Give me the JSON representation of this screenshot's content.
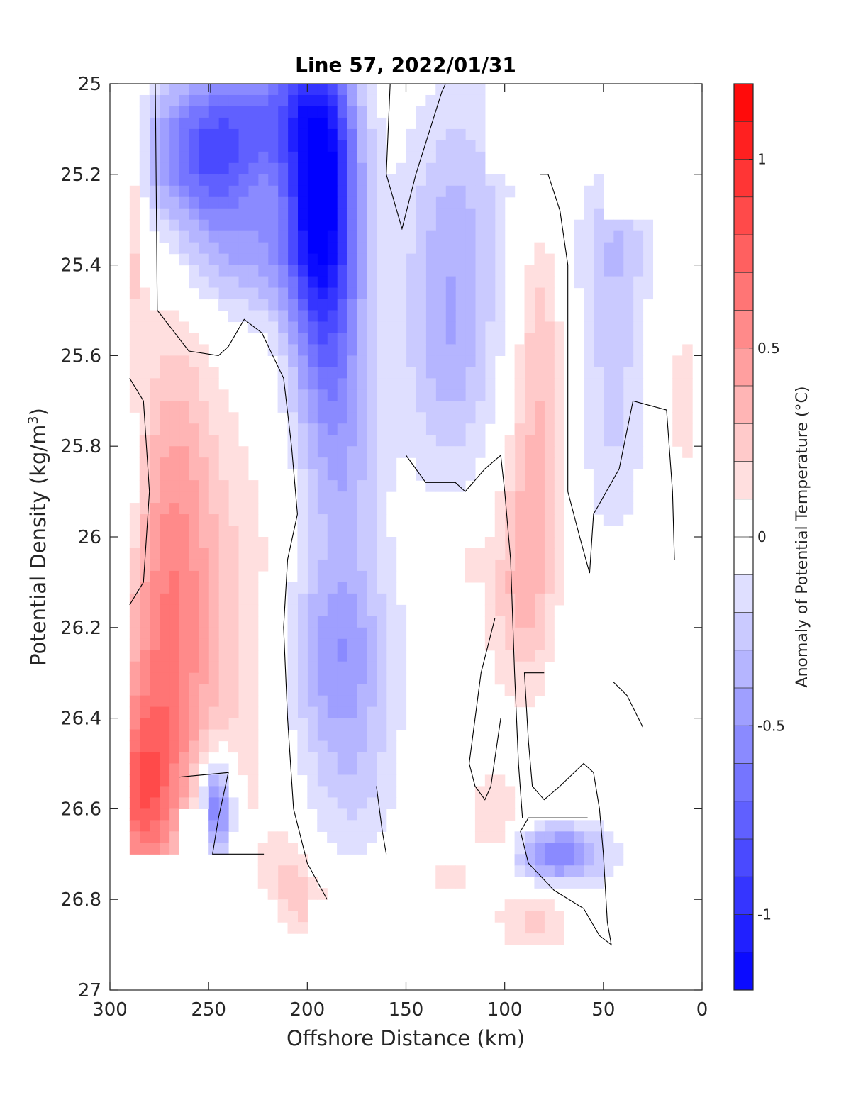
{
  "chart_data": {
    "type": "heatmap",
    "title": "Line 57, 2022/01/31",
    "xlabel": "Offshore Distance (km)",
    "ylabel": "Potential Density (kg/m³)",
    "ylabel_main": "Potential Density (kg/m",
    "ylabel_sup": "3",
    "ylabel_end": ")",
    "xlim": [
      300,
      0
    ],
    "ylim": [
      25,
      27
    ],
    "x_reversed": true,
    "y_reversed": true,
    "xticks": [
      300,
      250,
      200,
      150,
      100,
      50,
      0
    ],
    "xtick_labels": [
      "300",
      "250",
      "200",
      "150",
      "100",
      "50",
      "0"
    ],
    "yticks": [
      25,
      25.2,
      25.4,
      25.6,
      25.8,
      26,
      26.2,
      26.4,
      26.6,
      26.8,
      27
    ],
    "ytick_labels": [
      "25",
      "25.2",
      "25.4",
      "25.6",
      "25.8",
      "26",
      "26.2",
      "26.4",
      "26.6",
      "26.8",
      "27"
    ],
    "colorbar": {
      "label": "Anomaly of Potential Temperature (°C)",
      "range": [
        -1.2,
        1.2
      ],
      "level_step": 0.1,
      "ticks": [
        1,
        0.5,
        0,
        -0.5,
        -1
      ],
      "tick_labels": [
        "1",
        "0.5",
        "0",
        "-0.5",
        "-1"
      ],
      "colormap": "blue-white-red",
      "colors": {
        "negative": "#0000ff",
        "zero": "#ffffff",
        "positive": "#ff0000"
      }
    },
    "zero_contour": true,
    "features": [
      {
        "name": "cold core",
        "x": 193,
        "y": 25.2,
        "value": -1.0
      },
      {
        "name": "cold lens",
        "x": 250,
        "y": 25.15,
        "value": -0.7
      },
      {
        "name": "cold lens",
        "x": 185,
        "y": 26.25,
        "value": -0.45
      },
      {
        "name": "cold lens",
        "x": 128,
        "y": 25.55,
        "value": -0.35
      },
      {
        "name": "cold lens",
        "x": 45,
        "y": 25.6,
        "value": -0.25
      },
      {
        "name": "cold patch",
        "x": 245,
        "y": 26.6,
        "value": -0.55
      },
      {
        "name": "cold patch",
        "x": 70,
        "y": 26.7,
        "value": -0.5
      },
      {
        "name": "warm patch",
        "x": 282,
        "y": 26.6,
        "value": 0.55
      },
      {
        "name": "warm band",
        "x": 270,
        "y": 25.9,
        "value": 0.35
      },
      {
        "name": "warm band",
        "x": 88,
        "y": 25.9,
        "value": 0.25
      }
    ]
  }
}
